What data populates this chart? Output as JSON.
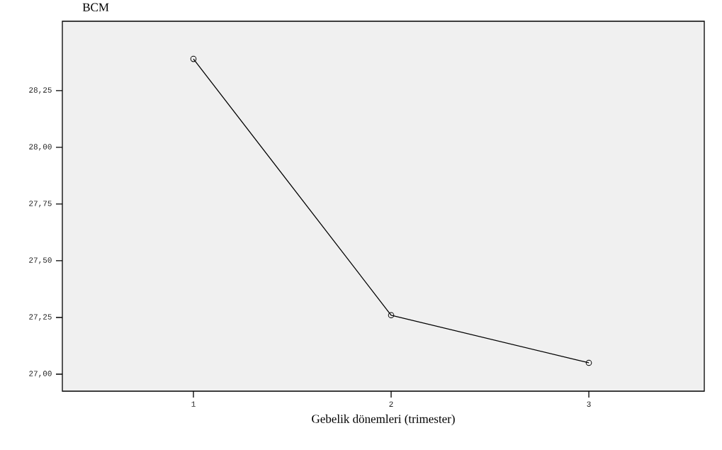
{
  "chart_data": {
    "type": "line",
    "xlabel": "Gebelik dönemleri (trimester)",
    "ylabel": "BCM",
    "categories": [
      "1",
      "2",
      "3"
    ],
    "series": [
      {
        "color": "#000000",
        "values": [
          28.39,
          27.26,
          27.05
        ]
      }
    ],
    "ylim": [
      26.925,
      28.556
    ],
    "yticks": [
      {
        "value": 27.0,
        "label": "27,00"
      },
      {
        "value": 27.25,
        "label": "27,25"
      },
      {
        "value": 27.5,
        "label": "27,50"
      },
      {
        "value": 27.75,
        "label": "27,75"
      },
      {
        "value": 28.0,
        "label": "28,00"
      },
      {
        "value": 28.25,
        "label": "28,25"
      }
    ],
    "marker": "circle",
    "line_style": "solid"
  }
}
